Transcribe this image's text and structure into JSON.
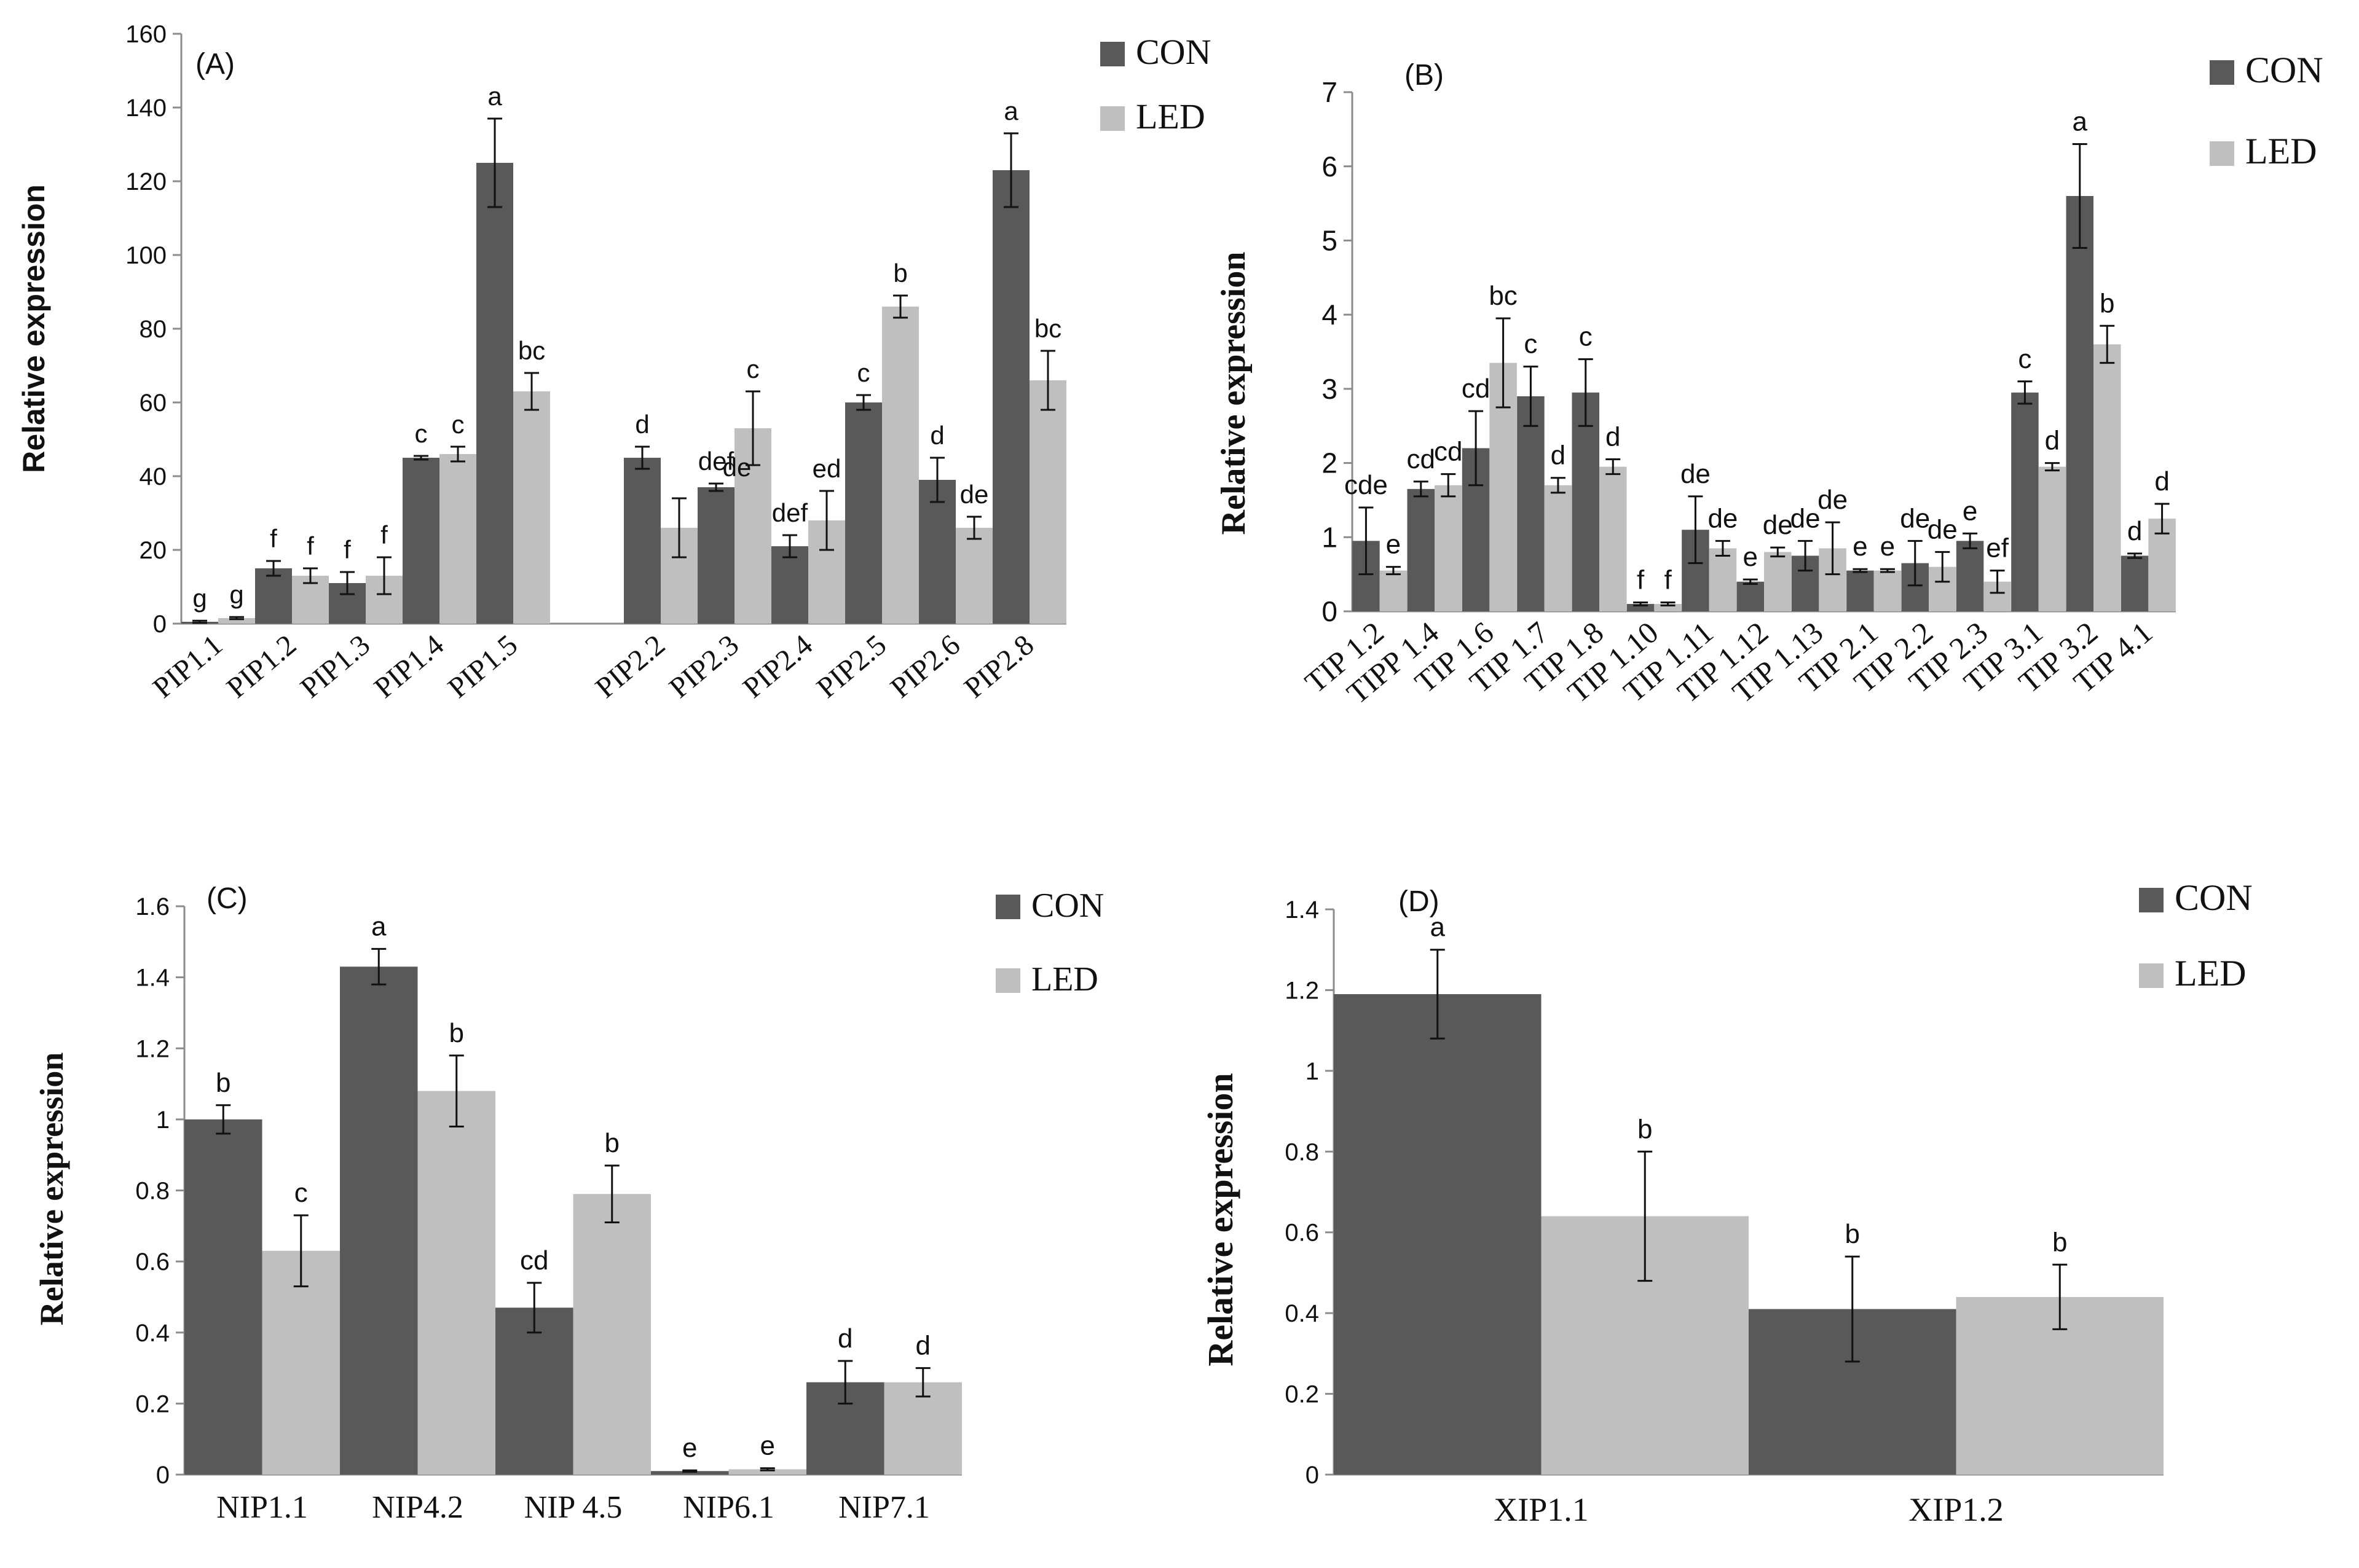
{
  "colors": {
    "con": "#595959",
    "led": "#bfbfbf",
    "axis": "#8c8c8c"
  },
  "chart_data": [
    {
      "panel": "(A)",
      "type": "bar",
      "title": "",
      "xlabel": "",
      "ylabel": "Relative expression",
      "ylim": [
        0,
        160
      ],
      "yticks": [
        "0",
        "20",
        "40",
        "60",
        "80",
        "100",
        "120",
        "140",
        "160"
      ],
      "grid": false,
      "legend": "top-right",
      "categories": [
        "PIP1.1",
        "PIP1.2",
        "PIP1.3",
        "PIP1.4",
        "PIP1.5",
        "",
        "PIP2.2",
        "PIP2.3",
        "PIP2.4",
        "PIP2.5",
        "PIP2.6",
        "PIP2.8"
      ],
      "series": [
        {
          "name": "CON",
          "values": [
            0.5,
            15,
            11,
            45,
            125,
            null,
            45,
            37,
            21,
            60,
            39,
            123
          ],
          "errors": [
            0.3,
            2,
            3,
            0.5,
            12,
            null,
            3,
            1,
            3,
            2,
            6,
            10
          ],
          "letters": [
            "g",
            "f",
            "f",
            "c",
            "a",
            "",
            "d",
            "def",
            "def",
            "c",
            "d",
            "a"
          ]
        },
        {
          "name": "LED",
          "values": [
            1.5,
            13,
            13,
            46,
            63,
            null,
            26,
            53,
            28,
            86,
            26,
            66
          ],
          "errors": [
            0.3,
            2,
            5,
            2,
            5,
            null,
            8,
            10,
            8,
            3,
            3,
            8
          ],
          "letters": [
            "g",
            "f",
            "f",
            "c",
            "bc",
            "",
            "",
            "c",
            "ed",
            "b",
            "de",
            "bc"
          ]
        }
      ],
      "extra_annotations": [
        "de"
      ]
    },
    {
      "panel": "(B)",
      "type": "bar",
      "title": "",
      "xlabel": "",
      "ylabel": "Relative expression",
      "ylim": [
        0,
        7
      ],
      "yticks": [
        "0",
        "1",
        "2",
        "3",
        "4",
        "5",
        "6",
        "7"
      ],
      "grid": false,
      "legend": "top-right",
      "categories": [
        "TIP 1.2",
        "TIPP 1.4",
        "TIP 1.6",
        "TIP 1.7",
        "TIP 1.8",
        "TIP 1.10",
        "TIP 1.11",
        "TIP 1.12",
        "TIP 1.13",
        "TIP 2.1",
        "TIP 2.2",
        "TIP 2.3",
        "TIP 3.1",
        "TIP 3.2",
        "TIP 4.1"
      ],
      "series": [
        {
          "name": "CON",
          "values": [
            0.95,
            1.65,
            2.2,
            2.9,
            2.95,
            0.1,
            1.1,
            0.4,
            0.75,
            0.55,
            0.65,
            0.95,
            2.95,
            5.6,
            0.75
          ],
          "errors": [
            0.45,
            0.1,
            0.5,
            0.4,
            0.45,
            0.02,
            0.45,
            0.03,
            0.2,
            0.02,
            0.3,
            0.1,
            0.15,
            0.7,
            0.03
          ],
          "letters": [
            "cde",
            "cd",
            "cd",
            "c",
            "c",
            "f",
            "de",
            "e",
            "de",
            "e",
            "de",
            "e",
            "c",
            "a",
            "d"
          ]
        },
        {
          "name": "LED",
          "values": [
            0.55,
            1.7,
            3.35,
            1.7,
            1.95,
            0.1,
            0.85,
            0.8,
            0.85,
            0.55,
            0.6,
            0.4,
            1.95,
            3.6,
            1.25
          ],
          "errors": [
            0.05,
            0.15,
            0.6,
            0.1,
            0.1,
            0.02,
            0.1,
            0.06,
            0.35,
            0.02,
            0.2,
            0.15,
            0.05,
            0.25,
            0.2
          ],
          "letters": [
            "e",
            "cd",
            "bc",
            "d",
            "d",
            "f",
            "de",
            "de",
            "de",
            "e",
            "de",
            "ef",
            "d",
            "b",
            "d"
          ]
        }
      ]
    },
    {
      "panel": "(C)",
      "type": "bar",
      "title": "",
      "xlabel": "",
      "ylabel": "Relative expression",
      "ylim": [
        0,
        1.6
      ],
      "yticks": [
        "0",
        "0.2",
        "0.4",
        "0.6",
        "0.8",
        "1",
        "1.2",
        "1.4",
        "1.6"
      ],
      "grid": false,
      "legend": "top-right",
      "categories": [
        "NIP1.1",
        "NIP4.2",
        "NIP 4.5",
        "NIP6.1",
        "NIP7.1"
      ],
      "series": [
        {
          "name": "CON",
          "values": [
            1.0,
            1.43,
            0.47,
            0.01,
            0.26
          ],
          "errors": [
            0.04,
            0.05,
            0.07,
            0.002,
            0.06
          ],
          "letters": [
            "b",
            "a",
            "cd",
            "e",
            "d"
          ]
        },
        {
          "name": "LED",
          "values": [
            0.63,
            1.08,
            0.79,
            0.015,
            0.26
          ],
          "errors": [
            0.1,
            0.1,
            0.08,
            0.003,
            0.04
          ],
          "letters": [
            "c",
            "b",
            "b",
            "e",
            "d"
          ]
        }
      ]
    },
    {
      "panel": "(D)",
      "type": "bar",
      "title": "",
      "xlabel": "",
      "ylabel": "Relative expression",
      "ylim": [
        0,
        1.4
      ],
      "yticks": [
        "0",
        "0.2",
        "0.4",
        "0.6",
        "0.8",
        "1",
        "1.2",
        "1.4"
      ],
      "grid": false,
      "legend": "top-right",
      "categories": [
        "XIP1.1",
        "XIP1.2"
      ],
      "series": [
        {
          "name": "CON",
          "values": [
            1.19,
            0.41
          ],
          "errors": [
            0.11,
            0.13
          ],
          "letters": [
            "a",
            "b"
          ]
        },
        {
          "name": "LED",
          "values": [
            0.64,
            0.44
          ],
          "errors": [
            0.16,
            0.08
          ],
          "letters": [
            "b",
            "b"
          ]
        }
      ]
    }
  ]
}
